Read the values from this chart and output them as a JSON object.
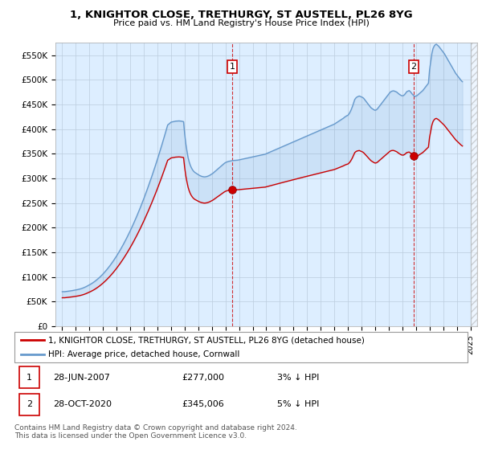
{
  "title": "1, KNIGHTOR CLOSE, TRETHURGY, ST AUSTELL, PL26 8YG",
  "subtitle": "Price paid vs. HM Land Registry's House Price Index (HPI)",
  "legend_line1": "1, KNIGHTOR CLOSE, TRETHURGY, ST AUSTELL, PL26 8YG (detached house)",
  "legend_line2": "HPI: Average price, detached house, Cornwall",
  "annotation1_label": "1",
  "annotation1_date": "28-JUN-2007",
  "annotation1_price": "£277,000",
  "annotation1_hpi": "3% ↓ HPI",
  "annotation2_label": "2",
  "annotation2_date": "28-OCT-2020",
  "annotation2_price": "£345,006",
  "annotation2_hpi": "5% ↓ HPI",
  "footer": "Contains HM Land Registry data © Crown copyright and database right 2024.\nThis data is licensed under the Open Government Licence v3.0.",
  "price_color": "#cc0000",
  "hpi_color": "#6699cc",
  "bg_color": "#ddeeff",
  "ylim_min": 0,
  "ylim_max": 575000,
  "xlim_min": 1994.5,
  "xlim_max": 2025.5,
  "yticks": [
    0,
    50000,
    100000,
    150000,
    200000,
    250000,
    300000,
    350000,
    400000,
    450000,
    500000,
    550000
  ],
  "ytick_labels": [
    "£0",
    "£50K",
    "£100K",
    "£150K",
    "£200K",
    "£250K",
    "£300K",
    "£350K",
    "£400K",
    "£450K",
    "£500K",
    "£550K"
  ],
  "xticks": [
    1995,
    1996,
    1997,
    1998,
    1999,
    2000,
    2001,
    2002,
    2003,
    2004,
    2005,
    2006,
    2007,
    2008,
    2009,
    2010,
    2011,
    2012,
    2013,
    2014,
    2015,
    2016,
    2017,
    2018,
    2019,
    2020,
    2021,
    2022,
    2023,
    2024,
    2025
  ],
  "sale1_x": 2007.49,
  "sale1_y": 277000,
  "sale2_x": 2020.83,
  "sale2_y": 345006,
  "hpi_x": [
    1995.0,
    1995.083,
    1995.167,
    1995.25,
    1995.333,
    1995.417,
    1995.5,
    1995.583,
    1995.667,
    1995.75,
    1995.833,
    1995.917,
    1996.0,
    1996.083,
    1996.167,
    1996.25,
    1996.333,
    1996.417,
    1996.5,
    1996.583,
    1996.667,
    1996.75,
    1996.833,
    1996.917,
    1997.0,
    1997.083,
    1997.167,
    1997.25,
    1997.333,
    1997.417,
    1997.5,
    1997.583,
    1997.667,
    1997.75,
    1997.833,
    1997.917,
    1998.0,
    1998.083,
    1998.167,
    1998.25,
    1998.333,
    1998.417,
    1998.5,
    1998.583,
    1998.667,
    1998.75,
    1998.833,
    1998.917,
    1999.0,
    1999.083,
    1999.167,
    1999.25,
    1999.333,
    1999.417,
    1999.5,
    1999.583,
    1999.667,
    1999.75,
    1999.833,
    1999.917,
    2000.0,
    2000.083,
    2000.167,
    2000.25,
    2000.333,
    2000.417,
    2000.5,
    2000.583,
    2000.667,
    2000.75,
    2000.833,
    2000.917,
    2001.0,
    2001.083,
    2001.167,
    2001.25,
    2001.333,
    2001.417,
    2001.5,
    2001.583,
    2001.667,
    2001.75,
    2001.833,
    2001.917,
    2002.0,
    2002.083,
    2002.167,
    2002.25,
    2002.333,
    2002.417,
    2002.5,
    2002.583,
    2002.667,
    2002.75,
    2002.833,
    2002.917,
    2003.0,
    2003.083,
    2003.167,
    2003.25,
    2003.333,
    2003.417,
    2003.5,
    2003.583,
    2003.667,
    2003.75,
    2003.833,
    2003.917,
    2004.0,
    2004.083,
    2004.167,
    2004.25,
    2004.333,
    2004.417,
    2004.5,
    2004.583,
    2004.667,
    2004.75,
    2004.833,
    2004.917,
    2005.0,
    2005.083,
    2005.167,
    2005.25,
    2005.333,
    2005.417,
    2005.5,
    2005.583,
    2005.667,
    2005.75,
    2005.833,
    2005.917,
    2006.0,
    2006.083,
    2006.167,
    2006.25,
    2006.333,
    2006.417,
    2006.5,
    2006.583,
    2006.667,
    2006.75,
    2006.833,
    2006.917,
    2007.0,
    2007.083,
    2007.167,
    2007.25,
    2007.333,
    2007.417,
    2007.5,
    2007.583,
    2007.667,
    2007.75,
    2007.833,
    2007.917,
    2008.0,
    2008.083,
    2008.167,
    2008.25,
    2008.333,
    2008.417,
    2008.5,
    2008.583,
    2008.667,
    2008.75,
    2008.833,
    2008.917,
    2009.0,
    2009.083,
    2009.167,
    2009.25,
    2009.333,
    2009.417,
    2009.5,
    2009.583,
    2009.667,
    2009.75,
    2009.833,
    2009.917,
    2010.0,
    2010.083,
    2010.167,
    2010.25,
    2010.333,
    2010.417,
    2010.5,
    2010.583,
    2010.667,
    2010.75,
    2010.833,
    2010.917,
    2011.0,
    2011.083,
    2011.167,
    2011.25,
    2011.333,
    2011.417,
    2011.5,
    2011.583,
    2011.667,
    2011.75,
    2011.833,
    2011.917,
    2012.0,
    2012.083,
    2012.167,
    2012.25,
    2012.333,
    2012.417,
    2012.5,
    2012.583,
    2012.667,
    2012.75,
    2012.833,
    2012.917,
    2013.0,
    2013.083,
    2013.167,
    2013.25,
    2013.333,
    2013.417,
    2013.5,
    2013.583,
    2013.667,
    2013.75,
    2013.833,
    2013.917,
    2014.0,
    2014.083,
    2014.167,
    2014.25,
    2014.333,
    2014.417,
    2014.5,
    2014.583,
    2014.667,
    2014.75,
    2014.833,
    2014.917,
    2015.0,
    2015.083,
    2015.167,
    2015.25,
    2015.333,
    2015.417,
    2015.5,
    2015.583,
    2015.667,
    2015.75,
    2015.833,
    2015.917,
    2016.0,
    2016.083,
    2016.167,
    2016.25,
    2016.333,
    2016.417,
    2016.5,
    2016.583,
    2016.667,
    2016.75,
    2016.833,
    2016.917,
    2017.0,
    2017.083,
    2017.167,
    2017.25,
    2017.333,
    2017.417,
    2017.5,
    2017.583,
    2017.667,
    2017.75,
    2017.833,
    2017.917,
    2018.0,
    2018.083,
    2018.167,
    2018.25,
    2018.333,
    2018.417,
    2018.5,
    2018.583,
    2018.667,
    2018.75,
    2018.833,
    2018.917,
    2019.0,
    2019.083,
    2019.167,
    2019.25,
    2019.333,
    2019.417,
    2019.5,
    2019.583,
    2019.667,
    2019.75,
    2019.833,
    2019.917,
    2020.0,
    2020.083,
    2020.167,
    2020.25,
    2020.333,
    2020.417,
    2020.5,
    2020.583,
    2020.667,
    2020.75,
    2020.833,
    2020.917,
    2021.0,
    2021.083,
    2021.167,
    2021.25,
    2021.333,
    2021.417,
    2021.5,
    2021.583,
    2021.667,
    2021.75,
    2021.833,
    2021.917,
    2022.0,
    2022.083,
    2022.167,
    2022.25,
    2022.333,
    2022.417,
    2022.5,
    2022.583,
    2022.667,
    2022.75,
    2022.833,
    2022.917,
    2023.0,
    2023.083,
    2023.167,
    2023.25,
    2023.333,
    2023.417,
    2023.5,
    2023.583,
    2023.667,
    2023.75,
    2023.833,
    2023.917,
    2024.0,
    2024.083,
    2024.167,
    2024.25,
    2024.333,
    2024.417
  ],
  "hpi_y": [
    70000,
    70200,
    70100,
    70400,
    70600,
    70900,
    71200,
    71600,
    72000,
    72400,
    72800,
    73200,
    73600,
    74100,
    74600,
    75200,
    75800,
    76500,
    77300,
    78200,
    79200,
    80300,
    81500,
    82800,
    84000,
    85300,
    86700,
    88200,
    89800,
    91500,
    93300,
    95200,
    97200,
    99300,
    101500,
    103800,
    106200,
    108700,
    111300,
    114000,
    116800,
    119700,
    122700,
    125800,
    129000,
    132300,
    135700,
    139200,
    142800,
    146500,
    150300,
    154200,
    158200,
    162300,
    166500,
    170800,
    175200,
    179700,
    184300,
    189000,
    193800,
    198700,
    203700,
    208800,
    214000,
    219300,
    224700,
    230200,
    235800,
    241500,
    247300,
    253200,
    259200,
    265300,
    271500,
    277800,
    284200,
    290700,
    297300,
    304000,
    310800,
    317700,
    324700,
    331800,
    339000,
    346300,
    353700,
    361200,
    368800,
    376500,
    384300,
    392200,
    400200,
    408300,
    410000,
    412000,
    414000,
    414500,
    415000,
    415500,
    416000,
    416200,
    416400,
    416500,
    416300,
    416000,
    415500,
    415000,
    390000,
    370000,
    355000,
    342000,
    333000,
    326000,
    321000,
    317000,
    314000,
    312000,
    310500,
    309000,
    307500,
    306000,
    305000,
    304000,
    303500,
    303000,
    303000,
    303500,
    304000,
    305000,
    306000,
    307500,
    309000,
    310500,
    312500,
    314500,
    316500,
    318500,
    320500,
    322500,
    324500,
    326500,
    328500,
    330500,
    332000,
    333000,
    334000,
    334500,
    335000,
    335500,
    336000,
    336200,
    336400,
    336600,
    336800,
    337000,
    337500,
    338000,
    338500,
    339000,
    339500,
    340000,
    340500,
    341000,
    341500,
    342000,
    342500,
    343000,
    343500,
    344000,
    344500,
    345000,
    345500,
    346000,
    346500,
    347000,
    347500,
    348000,
    348500,
    349000,
    350000,
    351000,
    352000,
    353000,
    354000,
    355000,
    356000,
    357000,
    358000,
    359000,
    360000,
    361000,
    362000,
    363000,
    364000,
    365000,
    366000,
    367000,
    368000,
    369000,
    370000,
    371000,
    372000,
    373000,
    374000,
    375000,
    376000,
    377000,
    378000,
    379000,
    380000,
    381000,
    382000,
    383000,
    384000,
    385000,
    386000,
    387000,
    388000,
    389000,
    390000,
    391000,
    392000,
    393000,
    394000,
    395000,
    396000,
    397000,
    398000,
    399000,
    400000,
    401000,
    402000,
    403000,
    404000,
    405000,
    406000,
    407000,
    408000,
    409000,
    410000,
    411500,
    413000,
    414500,
    416000,
    417500,
    419000,
    420500,
    422000,
    424000,
    425500,
    427000,
    428000,
    431000,
    435000,
    440000,
    446000,
    453000,
    460000,
    463000,
    465000,
    466000,
    467000,
    466000,
    465000,
    464000,
    462000,
    459000,
    456000,
    453000,
    450000,
    447000,
    444000,
    442000,
    440500,
    439000,
    438000,
    439000,
    441000,
    444000,
    447000,
    450000,
    453000,
    456000,
    459000,
    462000,
    465000,
    468000,
    471000,
    474000,
    476000,
    477000,
    477500,
    477000,
    476000,
    475000,
    473000,
    471000,
    469500,
    468000,
    467500,
    468000,
    470000,
    473000,
    476000,
    477000,
    478000,
    476000,
    473000,
    470000,
    468000,
    466000,
    467000,
    468000,
    470000,
    472000,
    474000,
    476000,
    478000,
    481000,
    484000,
    487000,
    490000,
    493000,
    520000,
    537000,
    553000,
    563000,
    568000,
    571000,
    572000,
    570000,
    568000,
    565000,
    562000,
    559000,
    556000,
    553000,
    549000,
    545000,
    541000,
    537000,
    533000,
    529000,
    525000,
    521000,
    517000,
    513000,
    510000,
    507000,
    504000,
    501000,
    498000,
    496000,
    494000,
    492000,
    491000,
    490000,
    489500,
    489000,
    488000,
    487500,
    487000,
    486500,
    486000,
    485500,
    485000,
    485000,
    485500,
    486000,
    487000,
    488000,
    489000,
    490000,
    491000,
    492000,
    493000,
    494000
  ]
}
